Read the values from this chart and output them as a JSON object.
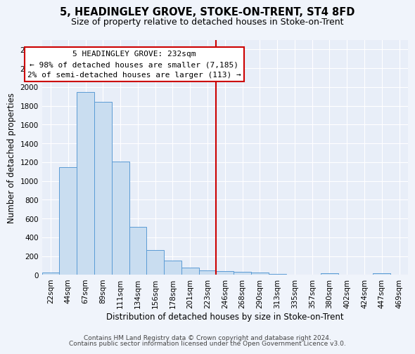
{
  "title": "5, HEADINGLEY GROVE, STOKE-ON-TRENT, ST4 8FD",
  "subtitle": "Size of property relative to detached houses in Stoke-on-Trent",
  "xlabel": "Distribution of detached houses by size in Stoke-on-Trent",
  "ylabel": "Number of detached properties",
  "bar_color": "#c9ddf0",
  "bar_edge_color": "#5b9bd5",
  "background_color": "#e8eef8",
  "fig_background_color": "#f0f4fb",
  "grid_color": "#ffffff",
  "categories": [
    "22sqm",
    "44sqm",
    "67sqm",
    "89sqm",
    "111sqm",
    "134sqm",
    "156sqm",
    "178sqm",
    "201sqm",
    "223sqm",
    "246sqm",
    "268sqm",
    "290sqm",
    "313sqm",
    "335sqm",
    "357sqm",
    "380sqm",
    "402sqm",
    "424sqm",
    "447sqm",
    "469sqm"
  ],
  "values": [
    25,
    1150,
    1950,
    1840,
    1210,
    510,
    265,
    150,
    80,
    45,
    40,
    30,
    25,
    10,
    5,
    0,
    20,
    5,
    0,
    20,
    0
  ],
  "ylim": [
    0,
    2500
  ],
  "yticks": [
    0,
    200,
    400,
    600,
    800,
    1000,
    1200,
    1400,
    1600,
    1800,
    2000,
    2200,
    2400
  ],
  "vline_color": "#cc0000",
  "vline_x": 9.5,
  "annotation_text": "5 HEADINGLEY GROVE: 232sqm\n← 98% of detached houses are smaller (7,185)\n2% of semi-detached houses are larger (113) →",
  "footer_line1": "Contains HM Land Registry data © Crown copyright and database right 2024.",
  "footer_line2": "Contains public sector information licensed under the Open Government Licence v3.0.",
  "title_fontsize": 10.5,
  "subtitle_fontsize": 9,
  "xlabel_fontsize": 8.5,
  "ylabel_fontsize": 8.5,
  "tick_fontsize": 7.5,
  "annotation_fontsize": 8,
  "footer_fontsize": 6.5
}
